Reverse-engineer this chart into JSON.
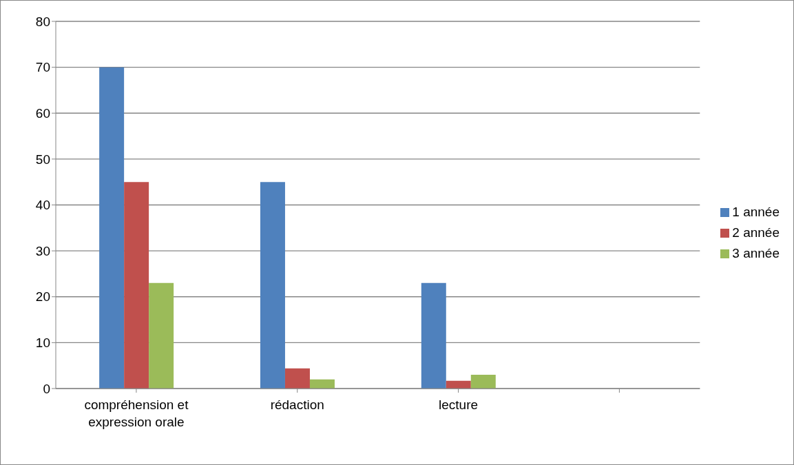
{
  "chart_data": {
    "type": "bar",
    "categories": [
      "compréhension et expression orale",
      "rédaction",
      "lecture",
      null
    ],
    "series": [
      {
        "name": "1 année",
        "color": "#4f81bd",
        "values": [
          70,
          45,
          23,
          null
        ]
      },
      {
        "name": "2 année",
        "color": "#c0504d",
        "values": [
          45,
          4.4,
          1.7,
          null
        ]
      },
      {
        "name": "3 année",
        "color": "#9bbb59",
        "values": [
          23,
          2,
          3,
          null
        ]
      }
    ],
    "ylim": [
      0,
      80
    ],
    "yticks": [
      0,
      10,
      20,
      30,
      40,
      50,
      60,
      70,
      80
    ],
    "grid": "y",
    "legend": "right"
  }
}
